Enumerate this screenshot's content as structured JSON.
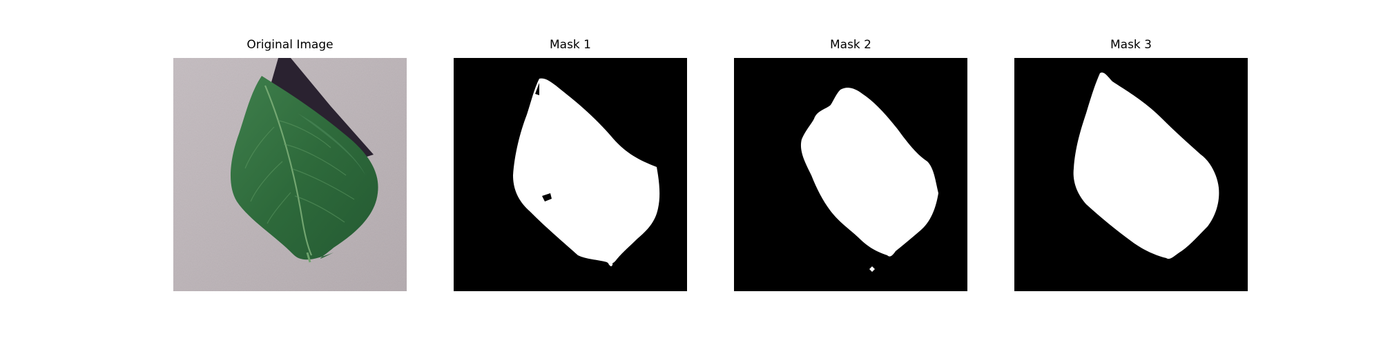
{
  "panels": [
    {
      "title": "Original Image",
      "content": "leaf-photo"
    },
    {
      "title": "Mask 1",
      "content": "segmentation-mask"
    },
    {
      "title": "Mask 2",
      "content": "segmentation-mask"
    },
    {
      "title": "Mask 3",
      "content": "segmentation-mask"
    }
  ],
  "colors": {
    "background": "#ffffff",
    "mask_foreground": "#ffffff",
    "mask_background": "#000000",
    "leaf": "#2f6b3c",
    "surface": "#bdb4b8",
    "shadow": "#2a2230"
  }
}
